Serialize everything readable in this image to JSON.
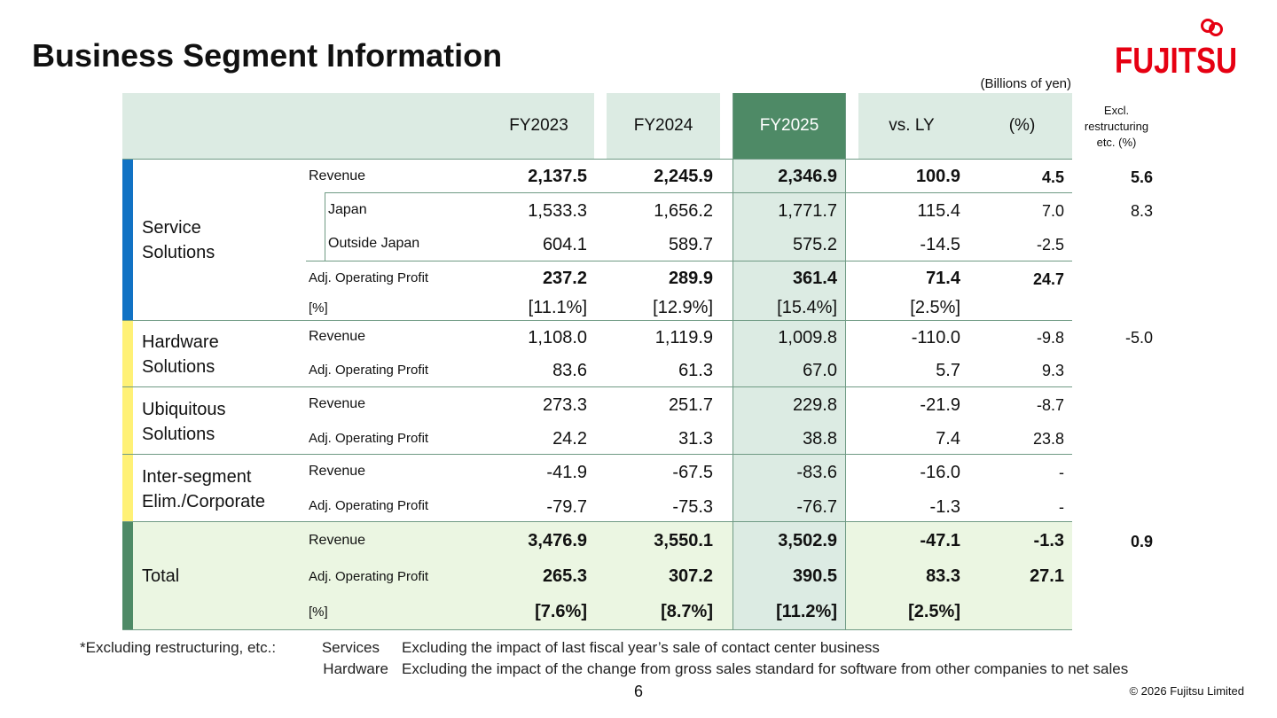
{
  "page_title": "Business Segment Information",
  "logo_text": "FUJITSU",
  "unit_note": "(Billions of yen)",
  "headers": {
    "fy2023": "FY2023",
    "fy2024": "FY2024",
    "fy2025": "FY2025",
    "vs_ly": "vs. LY",
    "pct": "(%)",
    "excl_1": "Excl.",
    "excl_2": "restructuring",
    "excl_3": "etc. (%)"
  },
  "segments": {
    "service_1": "Service",
    "service_2": "Solutions",
    "hardware_1": "Hardware",
    "hardware_2": "Solutions",
    "ubiquitous_1": "Ubiquitous",
    "ubiquitous_2": "Solutions",
    "inter_1": "Inter-segment",
    "inter_2": "Elim./Corporate",
    "total": "Total"
  },
  "rows": [
    {
      "label": "Revenue",
      "fy2023": "2,137.5",
      "fy2024": "2,245.9",
      "fy2025": "2,346.9",
      "vs_ly": "100.9",
      "pct": "4.5",
      "excl": "5.6"
    },
    {
      "label": "Japan",
      "fy2023": "1,533.3",
      "fy2024": "1,656.2",
      "fy2025": "1,771.7",
      "vs_ly": "115.4",
      "pct": "7.0",
      "excl": "8.3"
    },
    {
      "label": "Outside Japan",
      "fy2023": "604.1",
      "fy2024": "589.7",
      "fy2025": "575.2",
      "vs_ly": "-14.5",
      "pct": "-2.5",
      "excl": ""
    },
    {
      "label": "Adj. Operating Profit",
      "fy2023": "237.2",
      "fy2024": "289.9",
      "fy2025": "361.4",
      "vs_ly": "71.4",
      "pct": "24.7",
      "excl": ""
    },
    {
      "label": "[%]",
      "fy2023": "[11.1%]",
      "fy2024": "[12.9%]",
      "fy2025": "[15.4%]",
      "vs_ly": "[2.5%]",
      "pct": "",
      "excl": ""
    },
    {
      "label": "Revenue",
      "fy2023": "1,108.0",
      "fy2024": "1,119.9",
      "fy2025": "1,009.8",
      "vs_ly": "-110.0",
      "pct": "-9.8",
      "excl": "-5.0"
    },
    {
      "label": "Adj. Operating Profit",
      "fy2023": "83.6",
      "fy2024": "61.3",
      "fy2025": "67.0",
      "vs_ly": "5.7",
      "pct": "9.3",
      "excl": ""
    },
    {
      "label": "Revenue",
      "fy2023": "273.3",
      "fy2024": "251.7",
      "fy2025": "229.8",
      "vs_ly": "-21.9",
      "pct": "-8.7",
      "excl": ""
    },
    {
      "label": "Adj. Operating Profit",
      "fy2023": "24.2",
      "fy2024": "31.3",
      "fy2025": "38.8",
      "vs_ly": "7.4",
      "pct": "23.8",
      "excl": ""
    },
    {
      "label": "Revenue",
      "fy2023": "-41.9",
      "fy2024": "-67.5",
      "fy2025": "-83.6",
      "vs_ly": "-16.0",
      "pct": "-",
      "excl": ""
    },
    {
      "label": "Adj. Operating Profit",
      "fy2023": "-79.7",
      "fy2024": "-75.3",
      "fy2025": "-76.7",
      "vs_ly": "-1.3",
      "pct": "-",
      "excl": ""
    },
    {
      "label": "Revenue",
      "fy2023": "3,476.9",
      "fy2024": "3,550.1",
      "fy2025": "3,502.9",
      "vs_ly": "-47.1",
      "pct": "-1.3",
      "excl": "0.9"
    },
    {
      "label": "Adj. Operating Profit",
      "fy2023": "265.3",
      "fy2024": "307.2",
      "fy2025": "390.5",
      "vs_ly": "83.3",
      "pct": "27.1",
      "excl": ""
    },
    {
      "label": "[%]",
      "fy2023": "[7.6%]",
      "fy2024": "[8.7%]",
      "fy2025": "[11.2%]",
      "vs_ly": "[2.5%]",
      "pct": "",
      "excl": ""
    }
  ],
  "footnote": {
    "intro": "*Excluding restructuring, etc.:",
    "services_label": "Services",
    "services_text": "Excluding the impact of last fiscal year’s sale of contact center business",
    "hardware_label": "Hardware",
    "hardware_text": "Excluding the impact of the change from gross sales standard for software from other companies to net sales"
  },
  "page_number": "6",
  "copyright": "© 2026 Fujitsu Limited",
  "colors": {
    "header_bg": "#dcebe3",
    "fy2025_header": "#4e8a66",
    "fy2025_column": "#dcebe3",
    "total_bg": "#ebf6e2",
    "service_bar": "#1172c4",
    "yellow_bar": "#fff176",
    "total_bar": "#4e8a66",
    "logo_red": "#e60012"
  }
}
